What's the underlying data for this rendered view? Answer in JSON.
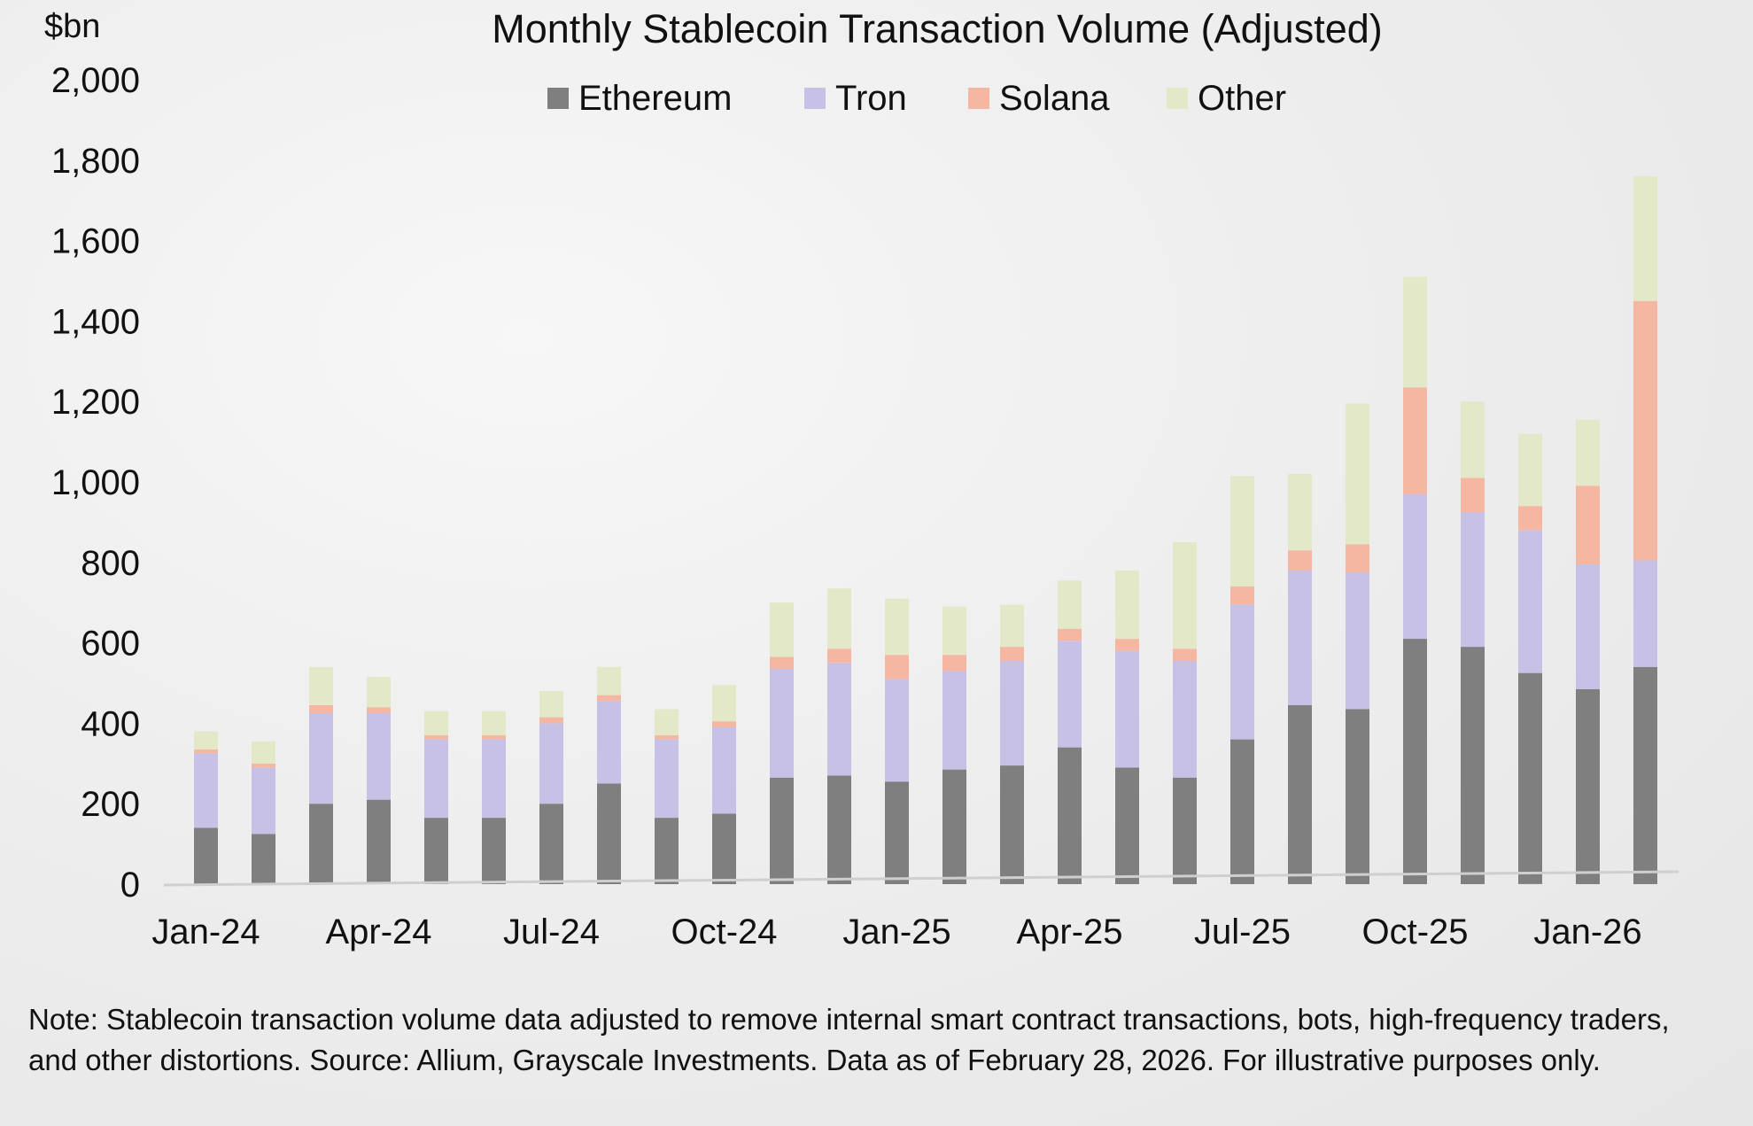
{
  "chart_data": {
    "type": "bar",
    "stacked": true,
    "title": "Monthly Stablecoin Transaction Volume (Adjusted)",
    "unit_label": "$bn",
    "ylim": [
      0,
      2000
    ],
    "yticks": [
      0,
      200,
      400,
      600,
      800,
      1000,
      1200,
      1400,
      1600,
      1800,
      2000
    ],
    "ytick_labels": [
      "0",
      "200",
      "400",
      "600",
      "800",
      "1,000",
      "1,200",
      "1,400",
      "1,600",
      "1,800",
      "2,000"
    ],
    "grid": false,
    "legend_position": "top",
    "categories": [
      "Jan-24",
      "Feb-24",
      "Mar-24",
      "Apr-24",
      "May-24",
      "Jun-24",
      "Jul-24",
      "Aug-24",
      "Sep-24",
      "Oct-24",
      "Nov-24",
      "Dec-24",
      "Jan-25",
      "Feb-25",
      "Mar-25",
      "Apr-25",
      "May-25",
      "Jun-25",
      "Jul-25",
      "Aug-25",
      "Sep-25",
      "Oct-25",
      "Nov-25",
      "Dec-25",
      "Jan-26",
      "Feb-26"
    ],
    "xtick_labels": [
      "Jan-24",
      "",
      "",
      "Apr-24",
      "",
      "",
      "Jul-24",
      "",
      "",
      "Oct-24",
      "",
      "",
      "Jan-25",
      "",
      "",
      "Apr-25",
      "",
      "",
      "Jul-25",
      "",
      "",
      "Oct-25",
      "",
      "",
      "Jan-26",
      ""
    ],
    "series": [
      {
        "name": "Ethereum",
        "color": "#7f7f7f",
        "values": [
          140,
          125,
          200,
          210,
          165,
          165,
          200,
          250,
          165,
          175,
          265,
          270,
          255,
          285,
          295,
          340,
          290,
          265,
          360,
          445,
          435,
          610,
          590,
          525,
          485,
          540
        ]
      },
      {
        "name": "Tron",
        "color": "#c7c1e6",
        "values": [
          185,
          165,
          225,
          215,
          195,
          195,
          200,
          205,
          195,
          215,
          270,
          280,
          255,
          245,
          260,
          265,
          290,
          290,
          335,
          335,
          340,
          360,
          335,
          355,
          310,
          265
        ]
      },
      {
        "name": "Solana",
        "color": "#f5b6a2",
        "values": [
          10,
          10,
          20,
          15,
          10,
          10,
          15,
          15,
          10,
          15,
          30,
          35,
          60,
          40,
          35,
          30,
          30,
          30,
          45,
          50,
          70,
          265,
          85,
          60,
          195,
          645
        ]
      },
      {
        "name": "Other",
        "color": "#e3e8c8",
        "values": [
          45,
          55,
          95,
          75,
          60,
          60,
          65,
          70,
          65,
          90,
          135,
          150,
          140,
          120,
          105,
          120,
          170,
          265,
          275,
          190,
          350,
          275,
          190,
          180,
          165,
          310
        ]
      }
    ]
  },
  "note": "Note: Stablecoin transaction volume data adjusted to remove internal smart contract transactions, bots, high-frequency traders, and other distortions. Source: Allium, Grayscale Investments. Data as of February 28, 2026. For illustrative purposes only."
}
